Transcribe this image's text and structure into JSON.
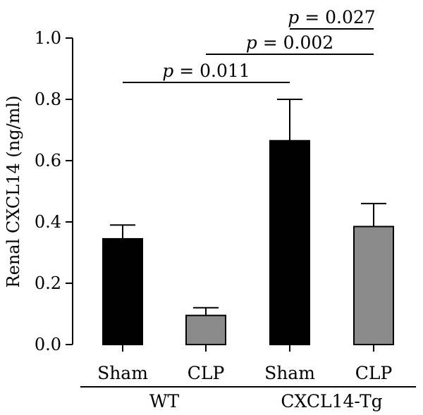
{
  "chart_data": {
    "type": "bar",
    "ylabel": "Renal CXCL14 (ng/ml)",
    "ylim": [
      0,
      1.0
    ],
    "yticks": [
      "0.0",
      "0.2",
      "0.4",
      "0.6",
      "0.8",
      "1.0"
    ],
    "grid": false,
    "categories": [
      "Sham",
      "CLP",
      "Sham",
      "CLP"
    ],
    "groups": [
      {
        "label": "WT",
        "categories": [
          0,
          1
        ]
      },
      {
        "label": "CXCL14-Tg",
        "categories": [
          2,
          3
        ]
      }
    ],
    "values": [
      0.345,
      0.095,
      0.665,
      0.385
    ],
    "errors": [
      0.045,
      0.025,
      0.135,
      0.075
    ],
    "colors": [
      "#000000",
      "#8a8a8a",
      "#000000",
      "#8a8a8a"
    ],
    "comparisons": [
      {
        "from": 0,
        "to": 2,
        "p_symbol": "p",
        "text": " = 0.011",
        "level": 1
      },
      {
        "from": 1,
        "to": 3,
        "p_symbol": "p",
        "text": " = 0.002",
        "level": 2
      },
      {
        "from": 2,
        "to": 3,
        "p_symbol": "p",
        "text": " = 0.027",
        "level": 3
      }
    ]
  }
}
